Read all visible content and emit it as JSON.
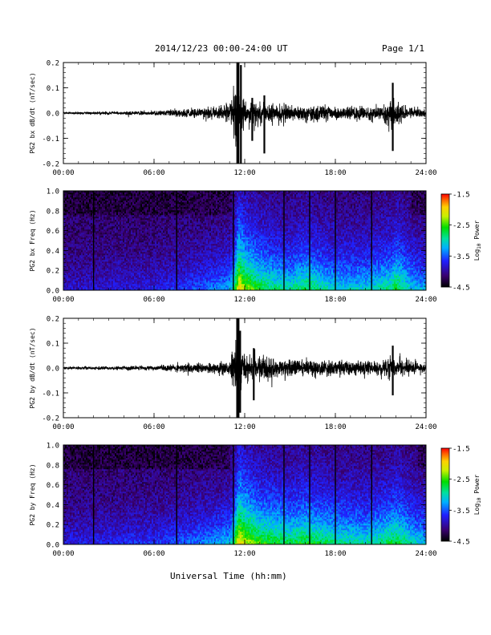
{
  "header": {
    "title": "2014/12/23  00:00-24:00 UT",
    "page": "Page 1/1"
  },
  "footer": {
    "xlabel": "Universal Time (hh:mm)"
  },
  "colorbar_labels": {
    "prefix": "Log",
    "subscript": "10",
    "suffix": " Power"
  },
  "chart_data": [
    {
      "type": "line",
      "ylabel": "PG2 bx dB/dt (nT/sec)",
      "xlabel": "",
      "x_unit": "hours UT",
      "xlim": [
        0,
        24
      ],
      "ylim": [
        -0.2,
        0.2
      ],
      "x_ticks": [
        "00:00",
        "06:00",
        "12:00",
        "18:00",
        "24:00"
      ],
      "y_ticks": [
        "-0.2",
        "-0.1",
        "0.0",
        "0.1",
        "0.2"
      ],
      "envelope": {
        "x": [
          0,
          2,
          4,
          6,
          7,
          8,
          9,
          10,
          10.5,
          11,
          11.5,
          11.7,
          12,
          12.5,
          13,
          13.5,
          14,
          15,
          16,
          17,
          18,
          19,
          20,
          21,
          21.5,
          21.8,
          22,
          22.5,
          23,
          24
        ],
        "amplitude": [
          0.006,
          0.008,
          0.01,
          0.014,
          0.02,
          0.025,
          0.03,
          0.035,
          0.04,
          0.05,
          0.21,
          0.16,
          0.09,
          0.08,
          0.07,
          0.06,
          0.055,
          0.05,
          0.05,
          0.045,
          0.045,
          0.04,
          0.04,
          0.05,
          0.08,
          0.11,
          0.07,
          0.05,
          0.035,
          0.025
        ]
      },
      "spikes": [
        {
          "x": 11.55,
          "y": [
            -0.2,
            0.2
          ]
        },
        {
          "x": 11.75,
          "y": [
            -0.2,
            0.19
          ]
        },
        {
          "x": 12.5,
          "y": [
            -0.11,
            0.06
          ]
        },
        {
          "x": 13.3,
          "y": [
            -0.16,
            0.07
          ]
        },
        {
          "x": 21.8,
          "y": [
            -0.15,
            0.12
          ]
        }
      ]
    },
    {
      "type": "heatmap",
      "ylabel": "PG2 bx Freq (Hz)",
      "xlabel": "",
      "x_unit": "hours UT",
      "xlim": [
        0,
        24
      ],
      "ylim": [
        0,
        1.0
      ],
      "x_ticks": [
        "00:00",
        "06:00",
        "12:00",
        "18:00",
        "24:00"
      ],
      "y_ticks": [
        "0.0",
        "0.2",
        "0.4",
        "0.6",
        "0.8",
        "1.0"
      ],
      "colorbar": {
        "min": -4.5,
        "max": -1.5,
        "ticks": [
          "-1.5",
          "-2.5",
          "-3.5",
          "-4.5"
        ]
      },
      "activity": {
        "x": [
          0,
          6,
          9,
          11,
          11.3,
          11.6,
          12,
          13,
          14,
          15,
          16,
          18,
          20,
          21.7,
          22,
          23,
          24
        ],
        "level": [
          0.15,
          0.2,
          0.3,
          0.4,
          0.6,
          1.0,
          0.85,
          0.7,
          0.6,
          0.55,
          0.65,
          0.5,
          0.5,
          0.6,
          0.7,
          0.5,
          0.4
        ]
      },
      "data_gaps_hours": [
        2.0,
        7.5,
        11.25,
        14.6,
        16.3,
        18.0,
        20.4
      ]
    },
    {
      "type": "line",
      "ylabel": "PG2 by dB/dt (nT/sec)",
      "xlabel": "",
      "x_unit": "hours UT",
      "xlim": [
        0,
        24
      ],
      "ylim": [
        -0.2,
        0.2
      ],
      "x_ticks": [
        "00:00",
        "06:00",
        "12:00",
        "18:00",
        "24:00"
      ],
      "y_ticks": [
        "-0.2",
        "-0.1",
        "0.0",
        "0.1",
        "0.2"
      ],
      "envelope": {
        "x": [
          0,
          2,
          4,
          6,
          7,
          8,
          9,
          10,
          10.5,
          11,
          11.5,
          11.7,
          12,
          12.5,
          13,
          13.5,
          14,
          15,
          16,
          17,
          18,
          19,
          20,
          21,
          21.5,
          21.8,
          22,
          22.5,
          23,
          24
        ],
        "amplitude": [
          0.008,
          0.01,
          0.012,
          0.015,
          0.02,
          0.025,
          0.03,
          0.035,
          0.04,
          0.05,
          0.21,
          0.15,
          0.1,
          0.09,
          0.08,
          0.07,
          0.06,
          0.055,
          0.05,
          0.05,
          0.045,
          0.045,
          0.045,
          0.05,
          0.07,
          0.08,
          0.06,
          0.05,
          0.04,
          0.03
        ]
      },
      "spikes": [
        {
          "x": 11.5,
          "y": [
            -0.21,
            0.2
          ]
        },
        {
          "x": 11.7,
          "y": [
            -0.18,
            0.15
          ]
        },
        {
          "x": 12.6,
          "y": [
            -0.13,
            0.08
          ]
        },
        {
          "x": 21.8,
          "y": [
            -0.11,
            0.09
          ]
        }
      ]
    },
    {
      "type": "heatmap",
      "ylabel": "PG2 by Freq (Hz)",
      "xlabel": "Universal Time (hh:mm)",
      "x_unit": "hours UT",
      "xlim": [
        0,
        24
      ],
      "ylim": [
        0,
        1.0
      ],
      "x_ticks": [
        "00:00",
        "06:00",
        "12:00",
        "18:00",
        "24:00"
      ],
      "y_ticks": [
        "0.0",
        "0.2",
        "0.4",
        "0.6",
        "0.8",
        "1.0"
      ],
      "colorbar": {
        "min": -4.5,
        "max": -1.5,
        "ticks": [
          "-1.5",
          "-2.5",
          "-3.5",
          "-4.5"
        ]
      },
      "activity": {
        "x": [
          0,
          6,
          9,
          11,
          11.3,
          11.6,
          12,
          13,
          14,
          15,
          16,
          18,
          20,
          21.7,
          22,
          23,
          24
        ],
        "level": [
          0.2,
          0.25,
          0.35,
          0.45,
          0.65,
          1.0,
          0.9,
          0.75,
          0.7,
          0.65,
          0.7,
          0.6,
          0.55,
          0.65,
          0.7,
          0.55,
          0.45
        ]
      },
      "data_gaps_hours": [
        2.0,
        7.5,
        11.25,
        14.6,
        16.3,
        18.0,
        20.4
      ]
    }
  ]
}
